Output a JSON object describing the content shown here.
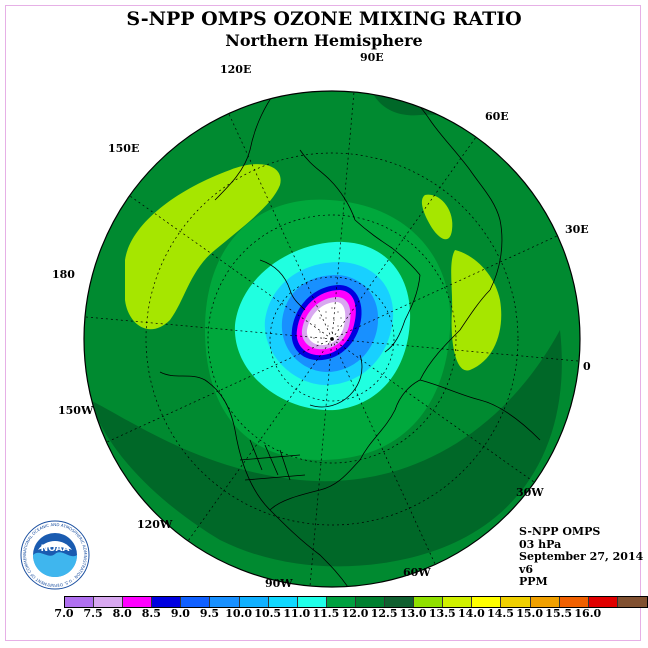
{
  "header": {
    "title": "S-NPP OMPS OZONE MIXING RATIO",
    "subtitle": "Northern Hemisphere"
  },
  "map": {
    "projection": "north-polar-stereographic",
    "longitude_labels": [
      "90E",
      "60E",
      "30E",
      "0",
      "30W",
      "60W",
      "90W",
      "120W",
      "150W",
      "180",
      "150E",
      "120E"
    ]
  },
  "info": {
    "instrument": "S-NPP OMPS",
    "level": "03 hPa",
    "date": "September 27, 2014",
    "version": "v6",
    "units": "PPM"
  },
  "colorbar": {
    "labels": [
      "7.0",
      "7.5",
      "8.0",
      "8.5",
      "9.0",
      "9.5",
      "10.0",
      "10.5",
      "11.0",
      "11.5",
      "12.0",
      "12.5",
      "13.0",
      "13.5",
      "14.0",
      "14.5",
      "15.0",
      "15.5",
      "16.0"
    ],
    "colors": [
      "#b070f0",
      "#d8a8f0",
      "#ff00ff",
      "#0000e0",
      "#1060ff",
      "#1890ff",
      "#10b0ff",
      "#10d8ff",
      "#20ffe8",
      "#00a040",
      "#008030",
      "#106030",
      "#90e000",
      "#d0f000",
      "#ffff00",
      "#f0d000",
      "#f0a000",
      "#f06000",
      "#e00000",
      "#805030"
    ]
  },
  "logo": {
    "text": "NOAA",
    "ring_text": "NATIONAL OCEANIC AND ATMOSPHERIC ADMINISTRATION · U.S. DEPARTMENT OF COMMERCE"
  }
}
